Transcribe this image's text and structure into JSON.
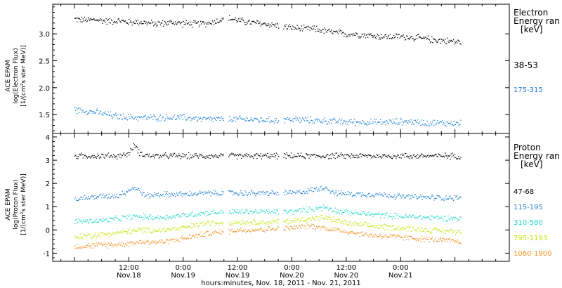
{
  "chart_data": [
    {
      "type": "scatter",
      "panel": "electron",
      "ylabel_lines": [
        "ACE EPAM",
        "log(Electron Flux)",
        "[1/(cm²s ster MeV)]"
      ],
      "ylim": [
        1.15,
        3.55
      ],
      "yticks": [
        1.5,
        2.0,
        2.5,
        3.0
      ],
      "ytick_labels": [
        "1.5",
        "2.0",
        "2.5",
        "3.0"
      ],
      "legend_title_lines": [
        "Electron",
        "Energy ran",
        "[keV]"
      ],
      "series": [
        {
          "name": "38-53",
          "color": "#000000",
          "points": [
            [
              0.0,
              3.28
            ],
            [
              0.1,
              3.26
            ],
            [
              0.2,
              3.27
            ],
            [
              0.3,
              3.24
            ],
            [
              0.4,
              3.25
            ],
            [
              0.5,
              3.22
            ],
            [
              0.6,
              3.23
            ],
            [
              0.7,
              3.2
            ],
            [
              0.8,
              3.2
            ],
            [
              0.9,
              3.22
            ],
            [
              1.0,
              3.2
            ],
            [
              1.1,
              3.19
            ],
            [
              1.2,
              3.2
            ],
            [
              1.3,
              3.24
            ],
            [
              1.4,
              3.3
            ],
            [
              1.5,
              3.26
            ],
            [
              1.6,
              3.22
            ],
            [
              1.7,
              3.2
            ],
            [
              1.8,
              3.18
            ],
            [
              1.9,
              3.15
            ],
            [
              2.0,
              3.12
            ],
            [
              2.1,
              3.1
            ],
            [
              2.2,
              3.1
            ],
            [
              2.3,
              3.06
            ],
            [
              2.4,
              3.03
            ],
            [
              2.5,
              3.0
            ],
            [
              2.6,
              3.0
            ],
            [
              2.7,
              2.98
            ],
            [
              2.8,
              2.96
            ],
            [
              2.9,
              2.95
            ],
            [
              3.0,
              2.96
            ],
            [
              3.1,
              2.94
            ],
            [
              3.2,
              2.92
            ],
            [
              3.3,
              2.9
            ],
            [
              3.4,
              2.88
            ],
            [
              3.5,
              2.86
            ],
            [
              3.55,
              2.85
            ]
          ]
        },
        {
          "name": "175-315",
          "color": "#1e7fd8",
          "points": [
            [
              0.0,
              1.6
            ],
            [
              0.2,
              1.55
            ],
            [
              0.4,
              1.47
            ],
            [
              0.6,
              1.45
            ],
            [
              0.8,
              1.45
            ],
            [
              1.0,
              1.45
            ],
            [
              1.2,
              1.42
            ],
            [
              1.4,
              1.42
            ],
            [
              1.6,
              1.42
            ],
            [
              1.8,
              1.4
            ],
            [
              2.0,
              1.42
            ],
            [
              2.2,
              1.4
            ],
            [
              2.4,
              1.38
            ],
            [
              2.6,
              1.37
            ],
            [
              2.8,
              1.36
            ],
            [
              3.0,
              1.38
            ],
            [
              3.2,
              1.36
            ],
            [
              3.4,
              1.35
            ],
            [
              3.55,
              1.34
            ]
          ]
        }
      ]
    },
    {
      "type": "scatter",
      "panel": "proton",
      "ylabel_lines": [
        "ACE EPAM",
        "log(Proton Flux)",
        "[1/(cm²s ster MeV)]"
      ],
      "ylim": [
        -1.35,
        4.15
      ],
      "yticks": [
        -1,
        0,
        1,
        2,
        3,
        4
      ],
      "ytick_labels": [
        "-1",
        "0",
        "1",
        "2",
        "3",
        "4"
      ],
      "legend_title_lines": [
        "Proton",
        "Energy ran",
        "[keV]"
      ],
      "series": [
        {
          "name": "47-68",
          "color": "#000000",
          "points": [
            [
              0.0,
              3.2
            ],
            [
              0.2,
              3.2
            ],
            [
              0.4,
              3.2
            ],
            [
              0.5,
              3.3
            ],
            [
              0.55,
              3.7
            ],
            [
              0.6,
              3.3
            ],
            [
              0.7,
              3.2
            ],
            [
              1.0,
              3.2
            ],
            [
              1.5,
              3.2
            ],
            [
              2.0,
              3.2
            ],
            [
              2.5,
              3.2
            ],
            [
              3.0,
              3.2
            ],
            [
              3.55,
              3.2
            ]
          ]
        },
        {
          "name": "115-195",
          "color": "#1e7fd8",
          "points": [
            [
              0.0,
              1.35
            ],
            [
              0.2,
              1.45
            ],
            [
              0.4,
              1.5
            ],
            [
              0.55,
              1.85
            ],
            [
              0.65,
              1.5
            ],
            [
              0.8,
              1.55
            ],
            [
              1.0,
              1.55
            ],
            [
              1.2,
              1.6
            ],
            [
              1.5,
              1.6
            ],
            [
              1.8,
              1.6
            ],
            [
              2.0,
              1.6
            ],
            [
              2.15,
              1.7
            ],
            [
              2.3,
              1.85
            ],
            [
              2.4,
              1.6
            ],
            [
              2.6,
              1.55
            ],
            [
              2.8,
              1.55
            ],
            [
              3.0,
              1.45
            ],
            [
              3.2,
              1.42
            ],
            [
              3.55,
              1.4
            ]
          ]
        },
        {
          "name": "310-580",
          "color": "#1ed8c8",
          "points": [
            [
              0.0,
              0.4
            ],
            [
              0.2,
              0.4
            ],
            [
              0.4,
              0.5
            ],
            [
              0.55,
              0.6
            ],
            [
              0.8,
              0.55
            ],
            [
              1.0,
              0.65
            ],
            [
              1.2,
              0.75
            ],
            [
              1.5,
              0.8
            ],
            [
              1.8,
              0.8
            ],
            [
              2.0,
              0.8
            ],
            [
              2.15,
              0.9
            ],
            [
              2.3,
              1.0
            ],
            [
              2.45,
              0.8
            ],
            [
              2.7,
              0.7
            ],
            [
              3.0,
              0.6
            ],
            [
              3.3,
              0.55
            ],
            [
              3.55,
              0.5
            ]
          ]
        },
        {
          "name": "795-1193",
          "color": "#c8e000",
          "points": [
            [
              0.0,
              -0.3
            ],
            [
              0.2,
              -0.2
            ],
            [
              0.4,
              -0.1
            ],
            [
              0.6,
              0.0
            ],
            [
              0.8,
              0.0
            ],
            [
              1.0,
              0.1
            ],
            [
              1.2,
              0.3
            ],
            [
              1.5,
              0.35
            ],
            [
              1.8,
              0.35
            ],
            [
              2.0,
              0.4
            ],
            [
              2.15,
              0.5
            ],
            [
              2.3,
              0.55
            ],
            [
              2.5,
              0.3
            ],
            [
              2.7,
              0.2
            ],
            [
              3.0,
              0.1
            ],
            [
              3.3,
              0.0
            ],
            [
              3.55,
              -0.05
            ]
          ]
        },
        {
          "name": "1060-1900",
          "color": "#f09020",
          "points": [
            [
              0.0,
              -0.7
            ],
            [
              0.2,
              -0.65
            ],
            [
              0.4,
              -0.6
            ],
            [
              0.6,
              -0.5
            ],
            [
              0.8,
              -0.5
            ],
            [
              1.0,
              -0.35
            ],
            [
              1.2,
              -0.15
            ],
            [
              1.5,
              0.0
            ],
            [
              1.8,
              0.05
            ],
            [
              2.0,
              0.1
            ],
            [
              2.15,
              0.2
            ],
            [
              2.3,
              0.1
            ],
            [
              2.5,
              -0.05
            ],
            [
              2.7,
              -0.2
            ],
            [
              3.0,
              -0.3
            ],
            [
              3.3,
              -0.4
            ],
            [
              3.55,
              -0.5
            ]
          ]
        }
      ]
    }
  ],
  "x_axis": {
    "xlim": [
      -0.2,
      4.0
    ],
    "time_ticks": [
      {
        "x": 0.5,
        "time": "12:00",
        "date": "Nov.18"
      },
      {
        "x": 1.0,
        "time": "0:00",
        "date": "Nov.19"
      },
      {
        "x": 1.5,
        "time": "12:00",
        "date": "Nov.19"
      },
      {
        "x": 2.0,
        "time": "0:00",
        "date": "Nov.20"
      },
      {
        "x": 2.5,
        "time": "12:00",
        "date": "Nov.20"
      },
      {
        "x": 3.0,
        "time": "0:00",
        "date": "Nov.21"
      }
    ],
    "minor_step": 0.125,
    "xlabel": "hours:minutes, Nov. 18, 2011 - Nov. 21, 2011"
  }
}
